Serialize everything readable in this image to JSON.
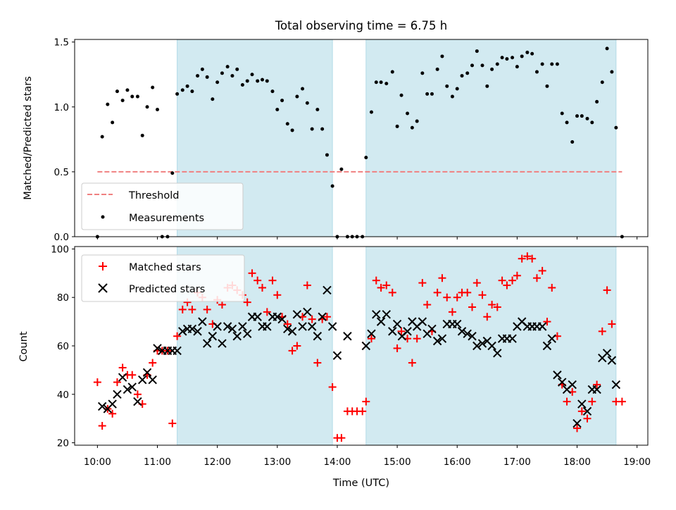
{
  "chart_data": [
    {
      "type": "scatter",
      "title": "Total observing time = 6.75 h",
      "ylabel": "Matched/Predicted stars",
      "xlim": [
        9.62,
        19.18
      ],
      "ylim": [
        0,
        1.52
      ],
      "yticks": [
        0.0,
        0.5,
        1.0,
        1.5
      ],
      "ytick_labels": [
        "0.0",
        "0.5",
        "1.0",
        "1.5"
      ],
      "shaded_intervals": [
        [
          11.33,
          13.92
        ],
        [
          14.48,
          18.65
        ]
      ],
      "shade_color": "#add8e6",
      "threshold": {
        "name": "Threshold",
        "value": 0.5,
        "x_range": [
          10.0,
          18.75
        ],
        "color": "#f08080",
        "style": "dashed"
      },
      "legend": {
        "location": "lower-left",
        "entries": [
          "Threshold",
          "Measurements"
        ]
      },
      "series": [
        {
          "name": "Measurements",
          "marker": "dot",
          "color": "#000000",
          "x": [
            10.0,
            10.08,
            10.17,
            10.25,
            10.33,
            10.42,
            10.5,
            10.58,
            10.67,
            10.75,
            10.83,
            10.92,
            11.0,
            11.08,
            11.17,
            11.25,
            11.33,
            11.42,
            11.5,
            11.58,
            11.67,
            11.75,
            11.83,
            11.92,
            12.0,
            12.08,
            12.17,
            12.25,
            12.33,
            12.42,
            12.5,
            12.58,
            12.67,
            12.75,
            12.83,
            12.92,
            13.0,
            13.08,
            13.17,
            13.25,
            13.33,
            13.42,
            13.5,
            13.58,
            13.67,
            13.75,
            13.83,
            13.92,
            14.0,
            14.07,
            14.17,
            14.25,
            14.33,
            14.42,
            14.48,
            14.57,
            14.65,
            14.73,
            14.82,
            14.92,
            15.0,
            15.07,
            15.17,
            15.25,
            15.33,
            15.42,
            15.5,
            15.58,
            15.67,
            15.75,
            15.83,
            15.92,
            16.0,
            16.08,
            16.17,
            16.25,
            16.33,
            16.42,
            16.5,
            16.58,
            16.67,
            16.75,
            16.83,
            16.92,
            17.0,
            17.08,
            17.17,
            17.25,
            17.33,
            17.42,
            17.5,
            17.58,
            17.67,
            17.75,
            17.83,
            17.92,
            18.0,
            18.08,
            18.17,
            18.25,
            18.33,
            18.42,
            18.5,
            18.58,
            18.65,
            18.75
          ],
          "y": [
            0.0,
            0.77,
            1.02,
            0.88,
            1.12,
            1.05,
            1.13,
            1.08,
            1.08,
            0.78,
            1.0,
            1.15,
            0.98,
            0.0,
            0.0,
            0.49,
            1.1,
            1.13,
            1.16,
            1.12,
            1.24,
            1.29,
            1.23,
            1.06,
            1.19,
            1.26,
            1.31,
            1.24,
            1.29,
            1.17,
            1.2,
            1.25,
            1.2,
            1.21,
            1.2,
            1.12,
            0.98,
            1.05,
            0.87,
            0.82,
            1.08,
            1.14,
            1.03,
            0.83,
            0.98,
            0.83,
            0.63,
            0.39,
            0.0,
            0.52,
            0.0,
            0.0,
            0.0,
            0.0,
            0.61,
            0.96,
            1.19,
            1.19,
            1.18,
            1.27,
            0.85,
            1.09,
            0.95,
            0.84,
            0.89,
            1.26,
            1.1,
            1.1,
            1.29,
            1.39,
            1.16,
            1.08,
            1.14,
            1.24,
            1.26,
            1.32,
            1.43,
            1.32,
            1.16,
            1.29,
            1.33,
            1.38,
            1.37,
            1.38,
            1.31,
            1.39,
            1.42,
            1.41,
            1.27,
            1.33,
            1.16,
            1.33,
            1.33,
            0.95,
            0.88,
            0.73,
            0.93,
            0.93,
            0.91,
            0.88,
            1.04,
            1.19,
            1.45,
            1.27,
            0.84,
            0.0
          ]
        }
      ]
    },
    {
      "type": "scatter",
      "xlabel": "Time (UTC)",
      "ylabel": "Count",
      "xlim": [
        9.62,
        19.18
      ],
      "ylim": [
        19,
        101
      ],
      "xticks": [
        10,
        11,
        12,
        13,
        14,
        15,
        16,
        17,
        18,
        19
      ],
      "xtick_labels": [
        "10:00",
        "11:00",
        "12:00",
        "13:00",
        "14:00",
        "15:00",
        "16:00",
        "17:00",
        "18:00",
        "19:00"
      ],
      "yticks": [
        20,
        40,
        60,
        80,
        100
      ],
      "ytick_labels": [
        "20",
        "40",
        "60",
        "80",
        "100"
      ],
      "shaded_intervals": [
        [
          11.33,
          13.92
        ],
        [
          14.48,
          18.65
        ]
      ],
      "shade_color": "#add8e6",
      "legend": {
        "location": "upper-left",
        "entries": [
          "Matched stars",
          "Predicted stars"
        ]
      },
      "series": [
        {
          "name": "Matched stars",
          "marker": "plus",
          "color": "#ff0000",
          "x": [
            10.0,
            10.08,
            10.17,
            10.25,
            10.33,
            10.42,
            10.5,
            10.58,
            10.67,
            10.75,
            10.83,
            10.92,
            11.0,
            11.08,
            11.17,
            11.25,
            11.33,
            11.42,
            11.5,
            11.58,
            11.67,
            11.75,
            11.83,
            11.92,
            12.0,
            12.08,
            12.17,
            12.25,
            12.33,
            12.42,
            12.5,
            12.58,
            12.67,
            12.75,
            12.83,
            12.92,
            13.0,
            13.08,
            13.17,
            13.25,
            13.33,
            13.42,
            13.5,
            13.58,
            13.67,
            13.75,
            13.83,
            13.92,
            14.0,
            14.07,
            14.17,
            14.25,
            14.33,
            14.42,
            14.48,
            14.57,
            14.65,
            14.73,
            14.82,
            14.92,
            15.0,
            15.07,
            15.17,
            15.25,
            15.33,
            15.42,
            15.5,
            15.58,
            15.67,
            15.75,
            15.83,
            15.92,
            16.0,
            16.08,
            16.17,
            16.25,
            16.33,
            16.42,
            16.5,
            16.58,
            16.67,
            16.75,
            16.83,
            16.92,
            17.0,
            17.08,
            17.17,
            17.25,
            17.33,
            17.42,
            17.5,
            17.58,
            17.67,
            17.75,
            17.83,
            17.92,
            18.0,
            18.08,
            18.17,
            18.25,
            18.33,
            18.42,
            18.5,
            18.58,
            18.65,
            18.75
          ],
          "y": [
            45,
            27,
            34,
            32,
            45,
            51,
            48,
            48,
            40,
            36,
            48,
            53,
            58,
            58,
            58,
            28,
            64,
            75,
            78,
            75,
            82,
            80,
            75,
            69,
            79,
            77,
            84,
            85,
            83,
            81,
            78,
            90,
            87,
            84,
            74,
            87,
            81,
            72,
            69,
            58,
            60,
            72,
            85,
            71,
            53,
            71,
            72,
            43,
            22,
            22,
            33,
            33,
            33,
            33,
            37,
            63,
            87,
            84,
            85,
            82,
            59,
            66,
            63,
            53,
            63,
            86,
            77,
            66,
            82,
            88,
            80,
            74,
            80,
            82,
            82,
            76,
            86,
            81,
            72,
            77,
            76,
            87,
            85,
            87,
            89,
            96,
            97,
            96,
            88,
            91,
            70,
            84,
            64,
            44,
            37,
            41,
            26,
            33,
            30,
            37,
            44,
            66,
            83,
            69,
            37,
            37
          ]
        },
        {
          "name": "Predicted stars",
          "marker": "x",
          "color": "#000000",
          "x": [
            10.08,
            10.17,
            10.25,
            10.33,
            10.42,
            10.5,
            10.58,
            10.67,
            10.75,
            10.83,
            10.92,
            11.0,
            11.08,
            11.17,
            11.25,
            11.33,
            11.42,
            11.5,
            11.58,
            11.67,
            11.75,
            11.83,
            11.92,
            12.0,
            12.08,
            12.17,
            12.25,
            12.33,
            12.42,
            12.5,
            12.58,
            12.67,
            12.75,
            12.83,
            12.92,
            13.0,
            13.08,
            13.17,
            13.25,
            13.33,
            13.42,
            13.5,
            13.58,
            13.67,
            13.75,
            13.83,
            13.92,
            14.0,
            14.17,
            14.48,
            14.57,
            14.65,
            14.73,
            14.82,
            14.92,
            15.0,
            15.08,
            15.17,
            15.25,
            15.33,
            15.42,
            15.5,
            15.58,
            15.67,
            15.75,
            15.83,
            15.92,
            16.0,
            16.08,
            16.17,
            16.25,
            16.33,
            16.42,
            16.5,
            16.58,
            16.67,
            16.75,
            16.83,
            16.92,
            17.0,
            17.08,
            17.17,
            17.25,
            17.33,
            17.42,
            17.5,
            17.58,
            17.67,
            17.75,
            17.83,
            17.92,
            18.0,
            18.08,
            18.17,
            18.25,
            18.33,
            18.42,
            18.5,
            18.58,
            18.65
          ],
          "y": [
            35,
            34,
            36,
            40,
            47,
            42,
            43,
            37,
            46,
            49,
            46,
            59,
            58,
            58,
            58,
            58,
            66,
            67,
            67,
            66,
            70,
            61,
            64,
            68,
            61,
            68,
            67,
            64,
            68,
            65,
            72,
            72,
            68,
            68,
            72,
            72,
            71,
            67,
            66,
            73,
            68,
            74,
            68,
            64,
            72,
            83,
            68,
            56,
            64,
            60,
            65,
            73,
            70,
            73,
            66,
            69,
            64,
            66,
            70,
            68,
            70,
            65,
            67,
            62,
            63,
            69,
            69,
            69,
            66,
            65,
            64,
            60,
            61,
            62,
            60,
            57,
            63,
            63,
            63,
            68,
            70,
            68,
            68,
            68,
            68,
            60,
            63,
            48,
            45,
            42,
            44,
            28,
            36,
            33,
            42,
            42,
            55,
            57,
            54,
            44
          ]
        }
      ]
    }
  ]
}
